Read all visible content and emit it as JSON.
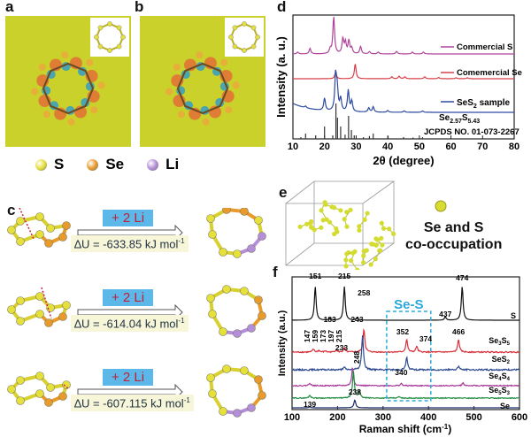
{
  "panel_labels": {
    "a": "a",
    "b": "b",
    "c": "c",
    "d": "d",
    "e": "e",
    "f": "f"
  },
  "colors": {
    "S": "#e6e03a",
    "Se": "#e89a2a",
    "Li": "#b48ed8",
    "field": "#c9d12a"
  },
  "legend": [
    {
      "label": "S",
      "color": "#e6e03a"
    },
    {
      "label": "Se",
      "color": "#e89a2a"
    },
    {
      "label": "Li",
      "color": "#b48ed8"
    }
  ],
  "reactions": [
    {
      "reagent": "+ 2 Li",
      "delta_u": "∆U  = -633.85 kJ mol",
      "unit_sup": "-1"
    },
    {
      "reagent": "+ 2 Li",
      "delta_u": "∆U  =  -614.04 kJ mol",
      "unit_sup": "-1"
    },
    {
      "reagent": "+ 2 Li",
      "delta_u": "∆U  =  -607.115 kJ mol",
      "unit_sup": "-1"
    }
  ],
  "panel_e": {
    "caption_line1": "Se and S",
    "caption_line2": "co-occupation"
  },
  "chart_data": [
    {
      "type": "line",
      "panel": "d",
      "xlabel": "2θ (degree)",
      "ylabel": "Intensity (a. u.)",
      "xlim": [
        10,
        80
      ],
      "xticks": [
        10,
        20,
        30,
        40,
        50,
        60,
        70,
        80
      ],
      "series": [
        {
          "name": "Commercial S",
          "color": "#b0449a",
          "peaks": [
            [
              11.5,
              0.05
            ],
            [
              15.4,
              0.15
            ],
            [
              21.8,
              0.12
            ],
            [
              22.9,
              1.0
            ],
            [
              25.8,
              0.4
            ],
            [
              26.6,
              0.3
            ],
            [
              27.7,
              0.35
            ],
            [
              28.6,
              0.15
            ],
            [
              31.4,
              0.2
            ],
            [
              34.2,
              0.06
            ],
            [
              37.0,
              0.05
            ],
            [
              42.8,
              0.07
            ],
            [
              47.8,
              0.05
            ],
            [
              51.3,
              0.05
            ]
          ]
        },
        {
          "name": "Comemercial Se",
          "color": "#d8404a",
          "peaks": [
            [
              23.5,
              0.25
            ],
            [
              29.7,
              0.6
            ],
            [
              41.3,
              0.08
            ],
            [
              43.6,
              0.1
            ],
            [
              45.4,
              0.08
            ],
            [
              51.7,
              0.08
            ],
            [
              56.1,
              0.05
            ],
            [
              61.6,
              0.04
            ],
            [
              65.2,
              0.04
            ]
          ]
        },
        {
          "name": "SeS2 sample",
          "label_main": "SeS",
          "label_sub": "2",
          "label_tail": " sample",
          "color": "#2d4aa0",
          "peaks": [
            [
              14.0,
              0.05
            ],
            [
              20.0,
              0.35
            ],
            [
              23.5,
              1.0
            ],
            [
              24.0,
              0.6
            ],
            [
              25.1,
              0.35
            ],
            [
              27.5,
              0.6
            ],
            [
              28.6,
              0.3
            ],
            [
              34.0,
              0.12
            ],
            [
              35.4,
              0.15
            ],
            [
              40.0,
              0.05
            ],
            [
              45.2,
              0.04
            ],
            [
              51.0,
              0.04
            ]
          ]
        },
        {
          "name": "JCPDS NO. 01-073-2267",
          "formula": "Se2.57S5.43",
          "color": "#333",
          "sticks": [
            [
              12.5,
              0.05
            ],
            [
              14.0,
              0.15
            ],
            [
              17.2,
              0.1
            ],
            [
              20.0,
              0.35
            ],
            [
              22.6,
              0.1
            ],
            [
              23.6,
              1.0
            ],
            [
              24.1,
              0.6
            ],
            [
              25.1,
              0.35
            ],
            [
              26.5,
              0.12
            ],
            [
              27.6,
              0.65
            ],
            [
              28.5,
              0.25
            ],
            [
              29.4,
              0.1
            ],
            [
              32.3,
              0.05
            ],
            [
              34.2,
              0.08
            ],
            [
              35.4,
              0.15
            ],
            [
              40.1,
              0.08
            ],
            [
              45.0,
              0.05
            ],
            [
              48.0,
              0.04
            ],
            [
              51.0,
              0.05
            ]
          ]
        }
      ],
      "jcpds_formula": {
        "a": "Se",
        "a_sub": "2.57",
        "b": "S",
        "b_sub": "5.43"
      },
      "jcpds_label": "JCPDS NO. 01-073-2267"
    },
    {
      "type": "line",
      "panel": "f",
      "xlabel": "Raman shift (cm",
      "xlabel_sup": "-1",
      "xlabel_end": ")",
      "ylabel": "Intensity (a.u.)",
      "xlim": [
        100,
        600
      ],
      "xticks": [
        100,
        200,
        300,
        400,
        500,
        600
      ],
      "highlight": {
        "label": "Se-S",
        "x_range": [
          308,
          405
        ],
        "color": "#2aa8d8"
      },
      "series": [
        {
          "name": "S",
          "label_main": "S",
          "label_sub": "",
          "color": "#111",
          "peaks": [
            [
              151,
              1.0
            ],
            [
              183,
              0.05
            ],
            [
              215,
              1.0
            ],
            [
              243,
              0.08
            ],
            [
              437,
              0.1
            ],
            [
              474,
              1.0
            ]
          ]
        },
        {
          "name": "Se3S5",
          "label_main": "Se",
          "label_sub": "3",
          "label_b": "S",
          "label_b_sub": "5",
          "color": "#d8303a",
          "noise": true,
          "peaks": [
            [
              147,
              0.15
            ],
            [
              159,
              0.08
            ],
            [
              173,
              0.06
            ],
            [
              197,
              0.12
            ],
            [
              215,
              0.2
            ],
            [
              258,
              1.2
            ],
            [
              352,
              0.65
            ],
            [
              374,
              0.3
            ],
            [
              466,
              0.65
            ]
          ]
        },
        {
          "name": "SeS2",
          "label_main": "SeS",
          "label_sub": "2",
          "color": "#2d4a90",
          "noise": true,
          "peaks": [
            [
              215,
              0.1
            ],
            [
              255,
              1.4
            ],
            [
              352,
              0.5
            ],
            [
              466,
              0.15
            ]
          ]
        },
        {
          "name": "Se4S4",
          "label_main": "Se",
          "label_sub": "4",
          "label_b": "S",
          "label_b_sub": "4",
          "color": "#a83a9a",
          "noise": true,
          "peaks": [
            [
              139,
              0.15
            ],
            [
              233,
              1.0
            ],
            [
              340,
              0.12
            ],
            [
              476,
              0.15
            ]
          ]
        },
        {
          "name": "Se5S3",
          "label_main": "Se",
          "label_sub": "5",
          "label_b": "S",
          "label_b_sub": "3",
          "color": "#208a40",
          "noise": true,
          "peaks": [
            [
              139,
              0.2
            ],
            [
              235,
              1.9
            ],
            [
              248,
              0.5
            ],
            [
              335,
              0.1
            ]
          ]
        },
        {
          "name": "Se",
          "label_main": "Se",
          "label_sub": "",
          "color": "#1a2a6a",
          "peaks": [
            [
              139,
              0.08
            ],
            [
              238,
              0.6
            ]
          ]
        }
      ],
      "peak_labels": [
        "151",
        "215",
        "183",
        "243",
        "474",
        "437",
        "258",
        "147",
        "159",
        "173",
        "197",
        "215",
        "352",
        "374",
        "466",
        "233",
        "248",
        "340",
        "238",
        "139"
      ]
    }
  ]
}
